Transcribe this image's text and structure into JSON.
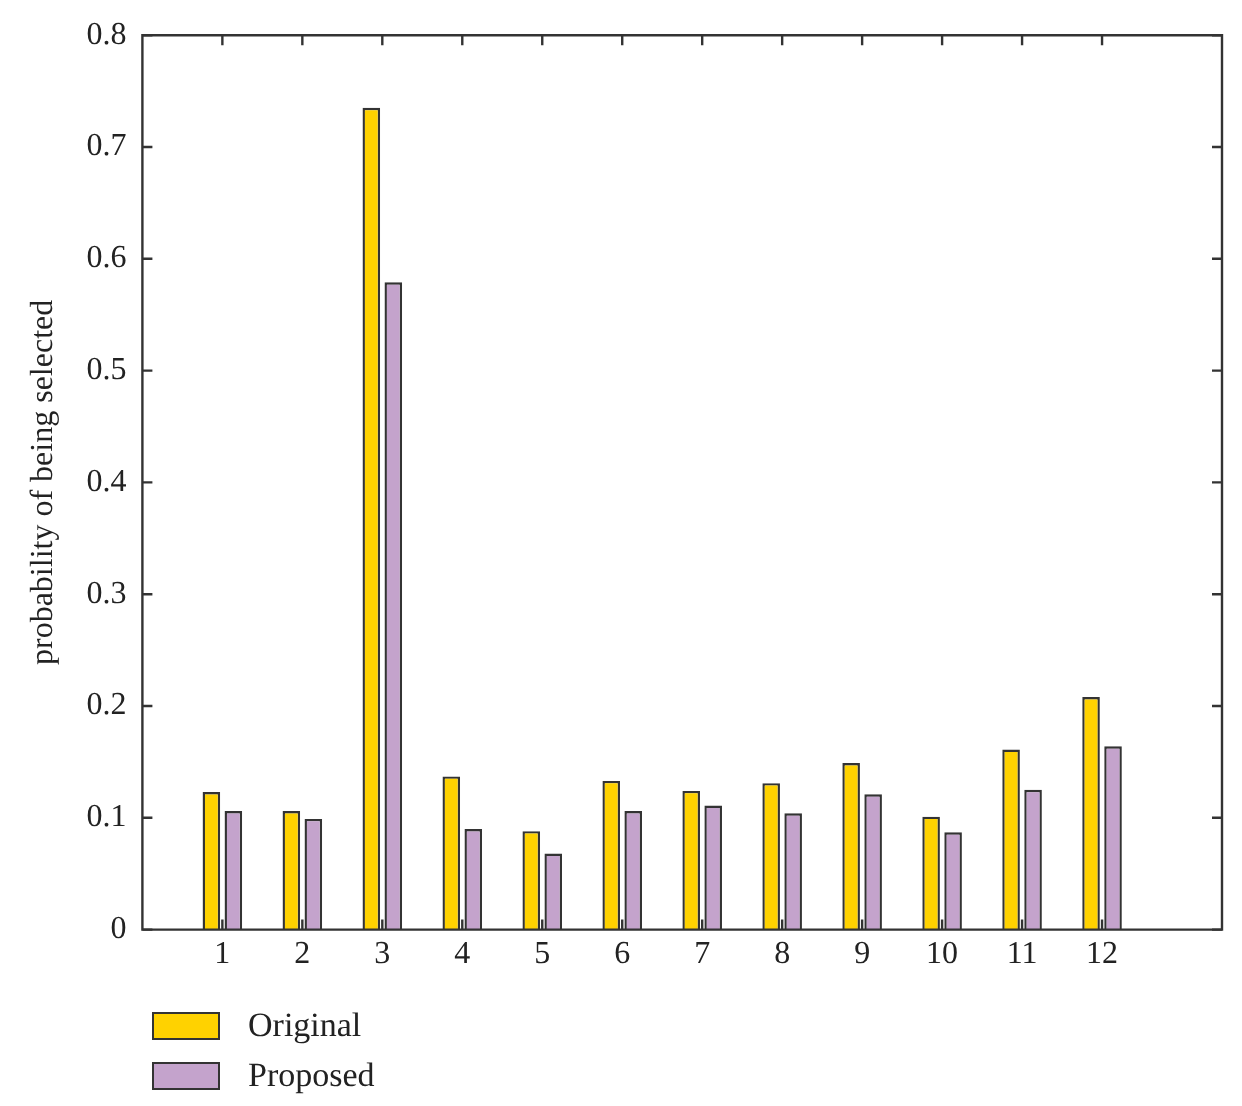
{
  "chart_data": {
    "type": "bar",
    "ylabel": "probability of being selected",
    "x": [
      1,
      2,
      3,
      4,
      5,
      6,
      7,
      8,
      9,
      10,
      11,
      12
    ],
    "xlim": [
      0,
      13.5
    ],
    "xticks": [
      1,
      2,
      3,
      4,
      5,
      6,
      7,
      8,
      9,
      10,
      11,
      12
    ],
    "ylim": [
      0,
      0.8
    ],
    "yticks": [
      0,
      0.1,
      0.2,
      0.3,
      0.4,
      0.5,
      0.6,
      0.7,
      0.8
    ],
    "series": [
      {
        "name": "Original",
        "color": "#ffd200",
        "values": [
          0.123,
          0.106,
          0.735,
          0.137,
          0.088,
          0.133,
          0.124,
          0.131,
          0.149,
          0.101,
          0.161,
          0.208
        ]
      },
      {
        "name": "Proposed",
        "color": "#c4a3cc",
        "values": [
          0.106,
          0.099,
          0.579,
          0.09,
          0.068,
          0.106,
          0.111,
          0.104,
          0.121,
          0.087,
          0.125,
          0.164
        ]
      }
    ],
    "grid": false,
    "legend": "bottom left"
  }
}
